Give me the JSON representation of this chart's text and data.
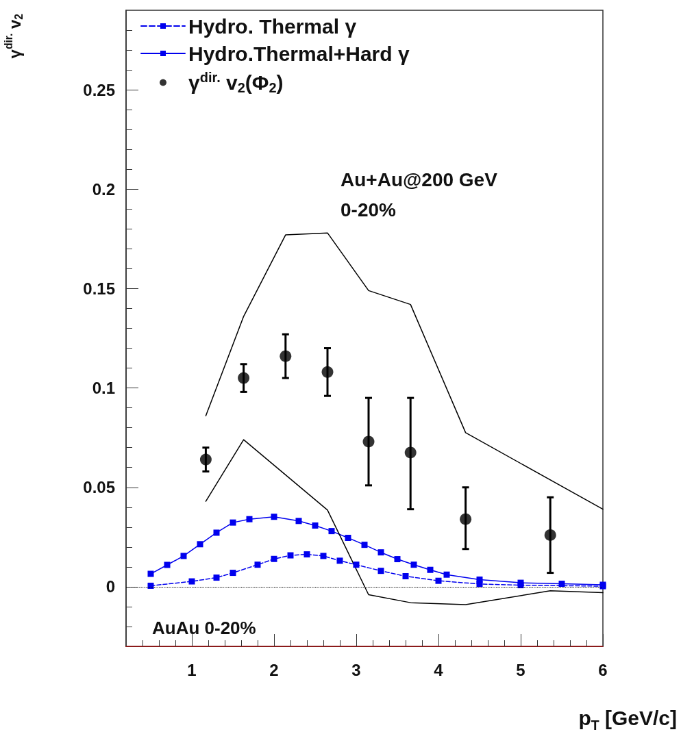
{
  "chart_data": {
    "type": "scatter",
    "xlabel": "p$_{T}$ [GeV/c]",
    "ylabel": "γ$^{dir.}$ v$_{2}$",
    "xlim": [
      0.2,
      6
    ],
    "xticks": [
      1,
      2,
      3,
      4,
      5,
      6
    ],
    "ylim": [
      -0.03,
      0.29
    ],
    "yticks": [
      0,
      0.05,
      0.1,
      0.15,
      0.2,
      0.25
    ],
    "grid": false,
    "legend": "top left",
    "annotations": [
      "Au+Au@200 GeV\n0-20%",
      "AuAu 0-20%"
    ],
    "ref_lines": [
      {
        "axis": "y",
        "value": 0,
        "label": null,
        "color": "#000000",
        "line_style": "dotted"
      }
    ],
    "series": [
      {
        "name": "Hydro. Thermal γ",
        "type": "line",
        "color": "#0000ee",
        "marker": "square",
        "line_style": "dashed",
        "x": [
          0.5,
          1.0,
          1.3,
          1.5,
          1.8,
          2.0,
          2.2,
          2.4,
          2.6,
          2.8,
          3.0,
          3.3,
          3.6,
          4.0,
          4.5,
          5.0,
          6.0
        ],
        "values": [
          0.0005,
          0.0027,
          0.0046,
          0.007,
          0.0111,
          0.014,
          0.0158,
          0.0163,
          0.0155,
          0.0131,
          0.0111,
          0.008,
          0.0053,
          0.003,
          0.0014,
          0.0008,
          0.0003
        ]
      },
      {
        "name": "Hydro.Thermal+Hard γ",
        "type": "line",
        "color": "#0000ee",
        "marker": "square",
        "line_style": "solid",
        "x": [
          0.5,
          0.7,
          0.9,
          1.1,
          1.3,
          1.5,
          1.7,
          2.0,
          2.3,
          2.5,
          2.7,
          2.9,
          3.1,
          3.3,
          3.5,
          3.7,
          3.9,
          4.1,
          4.5,
          5.0,
          5.5,
          6.0
        ],
        "values": [
          0.0065,
          0.011,
          0.0155,
          0.0214,
          0.0272,
          0.0323,
          0.034,
          0.0352,
          0.0331,
          0.0308,
          0.028,
          0.0246,
          0.0211,
          0.0173,
          0.0139,
          0.0111,
          0.0085,
          0.0061,
          0.0036,
          0.002,
          0.0015,
          0.001
        ]
      },
      {
        "name": "γ$^{dir.}$ v$_{2}$(Φ$_{2}$)",
        "color": "#000000",
        "marker": "circle",
        "x": [
          1.17,
          1.63,
          2.14,
          2.65,
          3.15,
          3.66,
          4.33,
          5.36
        ],
        "values": [
          0.064,
          0.105,
          0.116,
          0.108,
          0.073,
          0.0675,
          0.034,
          0.026
        ],
        "errors": [
          [
            0.058,
            0.07
          ],
          [
            0.098,
            0.112
          ],
          [
            0.105,
            0.127
          ],
          [
            0.096,
            0.12
          ],
          [
            0.051,
            0.095
          ],
          [
            0.039,
            0.095
          ],
          [
            0.019,
            0.05
          ],
          [
            0.007,
            0.045
          ]
        ]
      },
      {
        "type": "line",
        "color": "#000000",
        "marker": "none",
        "line_style": "solid",
        "x": [
          1.17,
          1.63,
          2.14,
          2.65,
          3.15,
          3.66,
          4.33,
          6.0
        ],
        "values": [
          0.086,
          0.136,
          0.177,
          0.178,
          0.149,
          0.142,
          0.0775,
          0.039
        ]
      },
      {
        "type": "line",
        "color": "#000000",
        "marker": "none",
        "line_style": "solid",
        "x": [
          1.17,
          1.63,
          2.65,
          3.15,
          3.66,
          4.33,
          5.36,
          6.0
        ],
        "values": [
          0.043,
          0.074,
          0.0386,
          -0.004,
          -0.008,
          -0.009,
          -0.002,
          -0.003
        ]
      }
    ]
  }
}
